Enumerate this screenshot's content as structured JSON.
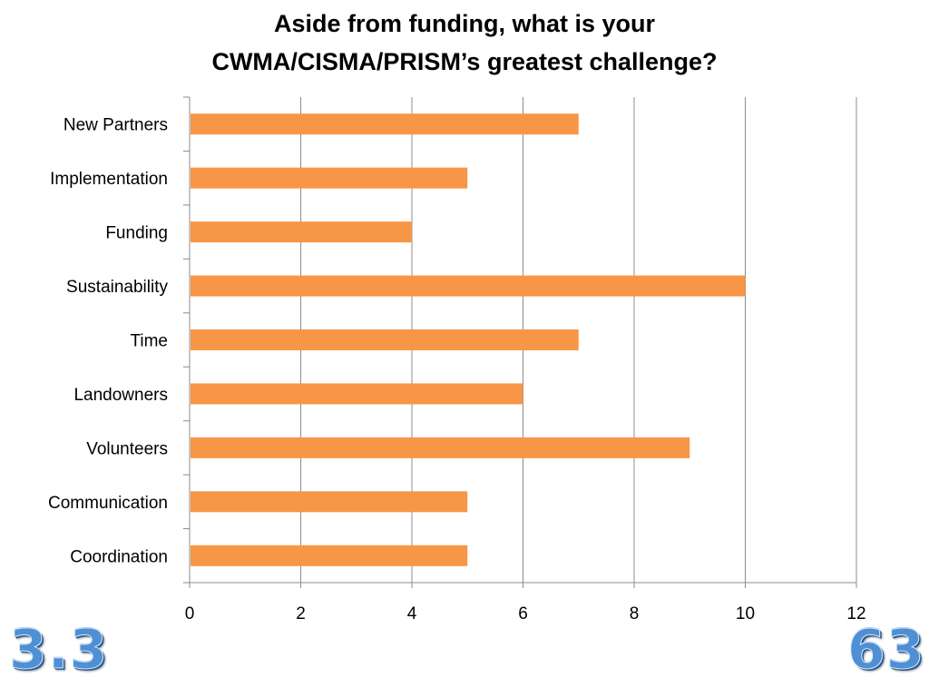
{
  "title_lines": [
    "Aside from funding, what is your",
    "CWMA/CISMA/PRISM’s greatest challenge?"
  ],
  "section_number": "3.3",
  "page_number": "63",
  "colors": {
    "bar": "#f79646",
    "grid": "#8c8c8c",
    "text": "#000000",
    "corner_number": "#4f8fd3"
  },
  "chart_data": {
    "type": "bar",
    "orientation": "horizontal",
    "title": "Aside from funding, what is your CWMA/CISMA/PRISM’s greatest challenge?",
    "categories": [
      "New Partners",
      "Implementation",
      "Funding",
      "Sustainability",
      "Time",
      "Landowners",
      "Volunteers",
      "Communication",
      "Coordination"
    ],
    "values": [
      7,
      5,
      4,
      10,
      7,
      6,
      9,
      5,
      5
    ],
    "xlim": [
      0,
      12
    ],
    "xticks": [
      "0",
      "2",
      "4",
      "6",
      "8",
      "10",
      "12"
    ],
    "xlabel": "",
    "ylabel": "",
    "grid": "vertical",
    "legend": "none"
  }
}
